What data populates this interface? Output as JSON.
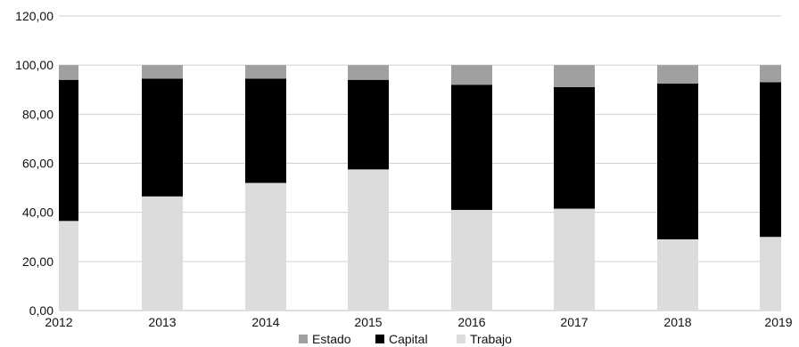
{
  "chart_data": {
    "type": "bar",
    "stacked": true,
    "categories": [
      "2012",
      "2013",
      "2014",
      "2015",
      "2016",
      "2017",
      "2018",
      "2019"
    ],
    "series": [
      {
        "name": "Trabajo",
        "color": "#dcdcdc",
        "values": [
          36.5,
          46.5,
          52.0,
          57.5,
          41.0,
          41.5,
          29.0,
          30.0
        ]
      },
      {
        "name": "Capital",
        "color": "#000000",
        "values": [
          57.5,
          48.0,
          42.5,
          36.5,
          51.0,
          49.5,
          63.5,
          63.0
        ]
      },
      {
        "name": "Estado",
        "color": "#a0a0a0",
        "values": [
          6.0,
          5.5,
          5.5,
          6.0,
          8.0,
          9.0,
          7.5,
          7.0
        ]
      }
    ],
    "legend_order": [
      "Estado",
      "Capital",
      "Trabajo"
    ],
    "y_ticks": [
      "0,00",
      "20,00",
      "40,00",
      "60,00",
      "80,00",
      "100,00",
      "120,00"
    ],
    "ylim": [
      0,
      120
    ],
    "grid": true,
    "legend_position": "bottom"
  }
}
